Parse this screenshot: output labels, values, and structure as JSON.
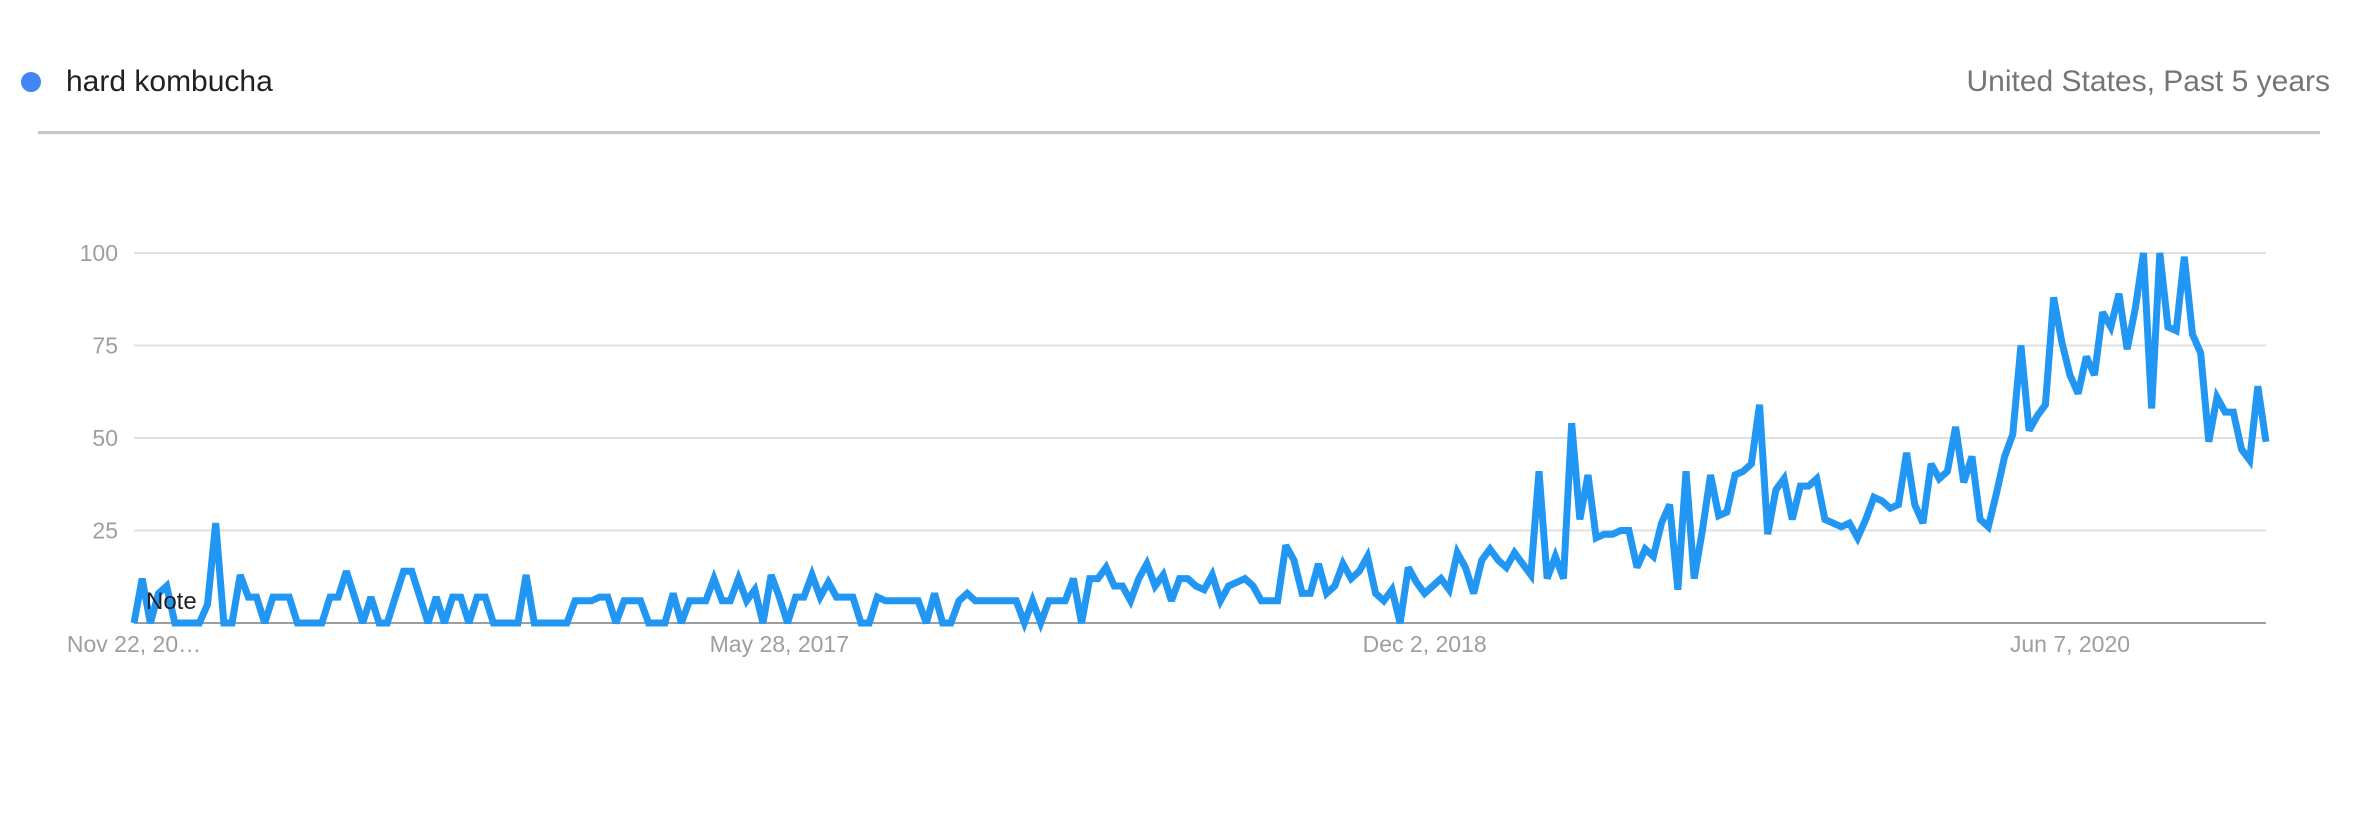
{
  "header": {
    "term": "hard kombucha",
    "context": "United States, Past 5 years",
    "series_color": "#4285f4"
  },
  "note_label": "Note",
  "chart_data": {
    "type": "line",
    "title": "",
    "xlabel": "",
    "ylabel": "",
    "ylim": [
      0,
      100
    ],
    "y_ticks": [
      25,
      50,
      75,
      100
    ],
    "y_tick_labels": [
      "25",
      "50",
      "75",
      "100"
    ],
    "x_tick_labels": [
      "Nov 22, 20…",
      "May 28, 2017",
      "Dec 2, 2018",
      "Jun 7, 2020"
    ],
    "x_tick_index": [
      0,
      79,
      158,
      237
    ],
    "grid": true,
    "line_color": "#2196f3",
    "series": [
      {
        "name": "hard kombucha",
        "values": [
          0,
          12,
          0,
          8,
          10,
          0,
          0,
          0,
          0,
          5,
          27,
          0,
          0,
          13,
          7,
          7,
          0,
          7,
          7,
          7,
          0,
          0,
          0,
          0,
          7,
          7,
          14,
          7,
          0,
          7,
          0,
          0,
          7,
          14,
          14,
          7,
          0,
          7,
          0,
          7,
          7,
          0,
          7,
          7,
          0,
          0,
          0,
          0,
          13,
          0,
          0,
          0,
          0,
          0,
          6,
          6,
          6,
          7,
          7,
          0,
          6,
          6,
          6,
          0,
          0,
          0,
          8,
          0,
          6,
          6,
          6,
          12,
          6,
          6,
          12,
          6,
          9,
          0,
          13,
          7,
          0,
          7,
          7,
          13,
          7,
          11,
          7,
          7,
          7,
          0,
          0,
          7,
          6,
          6,
          6,
          6,
          6,
          0,
          8,
          0,
          0,
          6,
          8,
          6,
          6,
          6,
          6,
          6,
          6,
          0,
          6,
          0,
          6,
          6,
          6,
          12,
          0,
          12,
          12,
          15,
          10,
          10,
          6,
          12,
          16,
          10,
          13,
          6,
          12,
          12,
          10,
          9,
          13,
          6,
          10,
          11,
          12,
          10,
          6,
          6,
          6,
          21,
          17,
          8,
          8,
          16,
          8,
          10,
          16,
          12,
          14,
          18,
          8,
          6,
          9,
          0,
          15,
          11,
          8,
          10,
          12,
          9,
          19,
          15,
          8,
          17,
          20,
          17,
          15,
          19,
          16,
          13,
          41,
          12,
          18,
          12,
          54,
          28,
          40,
          23,
          24,
          24,
          25,
          25,
          15,
          20,
          18,
          27,
          32,
          9,
          41,
          12,
          25,
          40,
          29,
          30,
          40,
          41,
          43,
          59,
          24,
          36,
          39,
          28,
          37,
          37,
          39,
          28,
          27,
          26,
          27,
          23,
          28,
          34,
          33,
          31,
          32,
          46,
          32,
          27,
          43,
          39,
          41,
          53,
          38,
          45,
          28,
          26,
          35,
          45,
          51,
          75,
          52,
          56,
          59,
          88,
          76,
          67,
          62,
          72,
          67,
          84,
          80,
          89,
          74,
          85,
          100,
          58,
          100,
          80,
          79,
          99,
          78,
          73,
          49,
          61,
          57,
          57,
          47,
          44,
          64,
          49
        ]
      }
    ]
  }
}
